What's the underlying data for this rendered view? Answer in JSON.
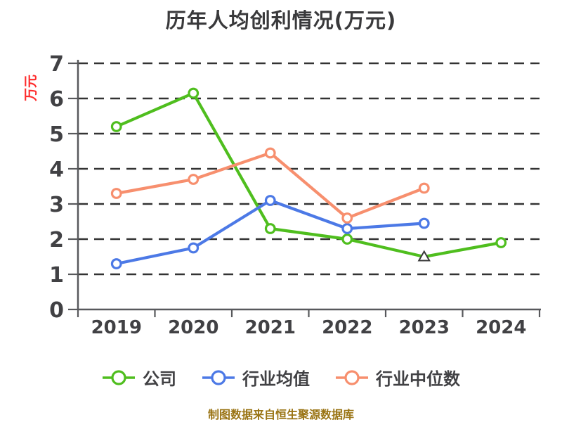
{
  "title": "历年人均创利情况(万元)",
  "y_axis_label": "万元",
  "footer": "制图数据来自恒生聚源数据库",
  "colors": {
    "background": "#FFFFFF",
    "title_text": "#39393B",
    "axis_line": "#58595C",
    "tick_label": "#414144",
    "gridline": "#333333",
    "y_axis_label_text": "#FE2C2C",
    "footer_text": "#9A7414",
    "marker_fill": "#FFFFFF",
    "series_company": "#4FBE1E",
    "series_industry_mean": "#4C79E6",
    "series_industry_median": "#F78F6E"
  },
  "chart_data": {
    "type": "line",
    "title": "历年人均创利情况(万元)",
    "xlabel": "",
    "ylabel": "万元",
    "categories": [
      "2019",
      "2020",
      "2021",
      "2022",
      "2023",
      "2024"
    ],
    "series": [
      {
        "name": "公司",
        "color": "#4FBE1E",
        "values": [
          5.2,
          6.15,
          2.3,
          2.0,
          1.5,
          1.9
        ],
        "markers": [
          "circle",
          "circle",
          "circle",
          "circle",
          "triangle",
          "circle"
        ]
      },
      {
        "name": "行业均值",
        "color": "#4C79E6",
        "values": [
          1.3,
          1.75,
          3.1,
          2.3,
          2.45,
          null
        ],
        "markers": [
          "circle",
          "circle",
          "circle",
          "circle",
          "circle",
          null
        ]
      },
      {
        "name": "行业中位数",
        "color": "#F78F6E",
        "values": [
          3.3,
          3.7,
          4.45,
          2.6,
          3.45,
          null
        ],
        "markers": [
          "circle",
          "circle",
          "circle",
          "circle",
          "circle",
          null
        ]
      }
    ],
    "ylim": [
      0,
      7
    ],
    "y_ticks": [
      0,
      1,
      2,
      3,
      4,
      5,
      6,
      7
    ],
    "grid": "horizontal-dashed",
    "legend_position": "bottom"
  }
}
